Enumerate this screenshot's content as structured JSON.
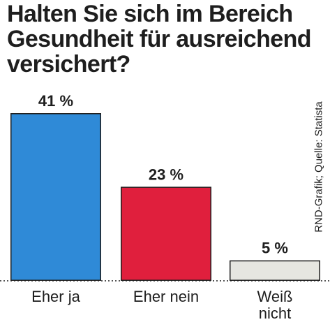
{
  "title": "Halten Sie sich im Bereich Gesundheit für ausreichend versichert?",
  "source": "RND-Grafik; Quelle: Statista",
  "colors": {
    "eher_ja": "#2f8ad7",
    "eher_nein": "#e01f3d",
    "weiss_nicht": "#e6e6e1",
    "outline": "#1e1e1e",
    "baseline": "#1e1e1e"
  },
  "chart_data": {
    "type": "bar",
    "title": "Halten Sie sich im Bereich Gesundheit für ausreichend versichert?",
    "categories": [
      "Eher ja",
      "Eher nein",
      "Weiß nicht"
    ],
    "category_lines": [
      [
        "Eher ja"
      ],
      [
        "Eher nein"
      ],
      [
        "Weiß",
        "nicht"
      ]
    ],
    "values": [
      41,
      23,
      5
    ],
    "value_labels": [
      "41 %",
      "23 %",
      "5 %"
    ],
    "unit": "%",
    "ylim": [
      0,
      41
    ],
    "grid": false,
    "legend": "none",
    "baseline": "dotted"
  }
}
